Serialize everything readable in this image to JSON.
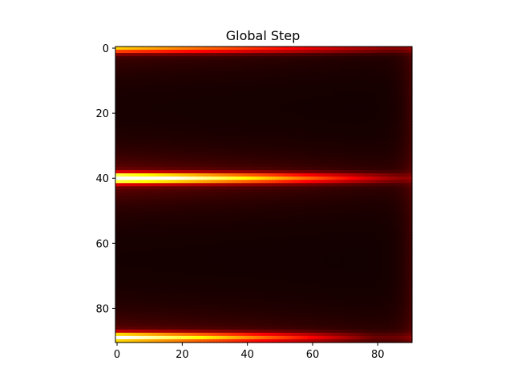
{
  "chart_data": {
    "type": "heatmap",
    "title": "Global Step",
    "xlabel": "",
    "ylabel": "",
    "colormap": "hot",
    "rows": 91,
    "cols": 91,
    "xlim": [
      -0.5,
      90.5
    ],
    "ylim": [
      90.5,
      -0.5
    ],
    "x_ticks": [
      0,
      20,
      40,
      60,
      80
    ],
    "y_ticks": [
      0,
      20,
      40,
      60,
      80
    ],
    "x_tick_labels": [
      "0",
      "20",
      "40",
      "60",
      "80"
    ],
    "y_tick_labels": [
      "0",
      "20",
      "40",
      "60",
      "80"
    ],
    "grid": false,
    "bright_rows": [
      {
        "row": 0,
        "peak": 0.55,
        "decay_col": 90
      },
      {
        "row": 40,
        "peak": 1.0,
        "decay_col": 80
      },
      {
        "row": 89,
        "peak": 0.85,
        "decay_col": 70
      }
    ]
  }
}
